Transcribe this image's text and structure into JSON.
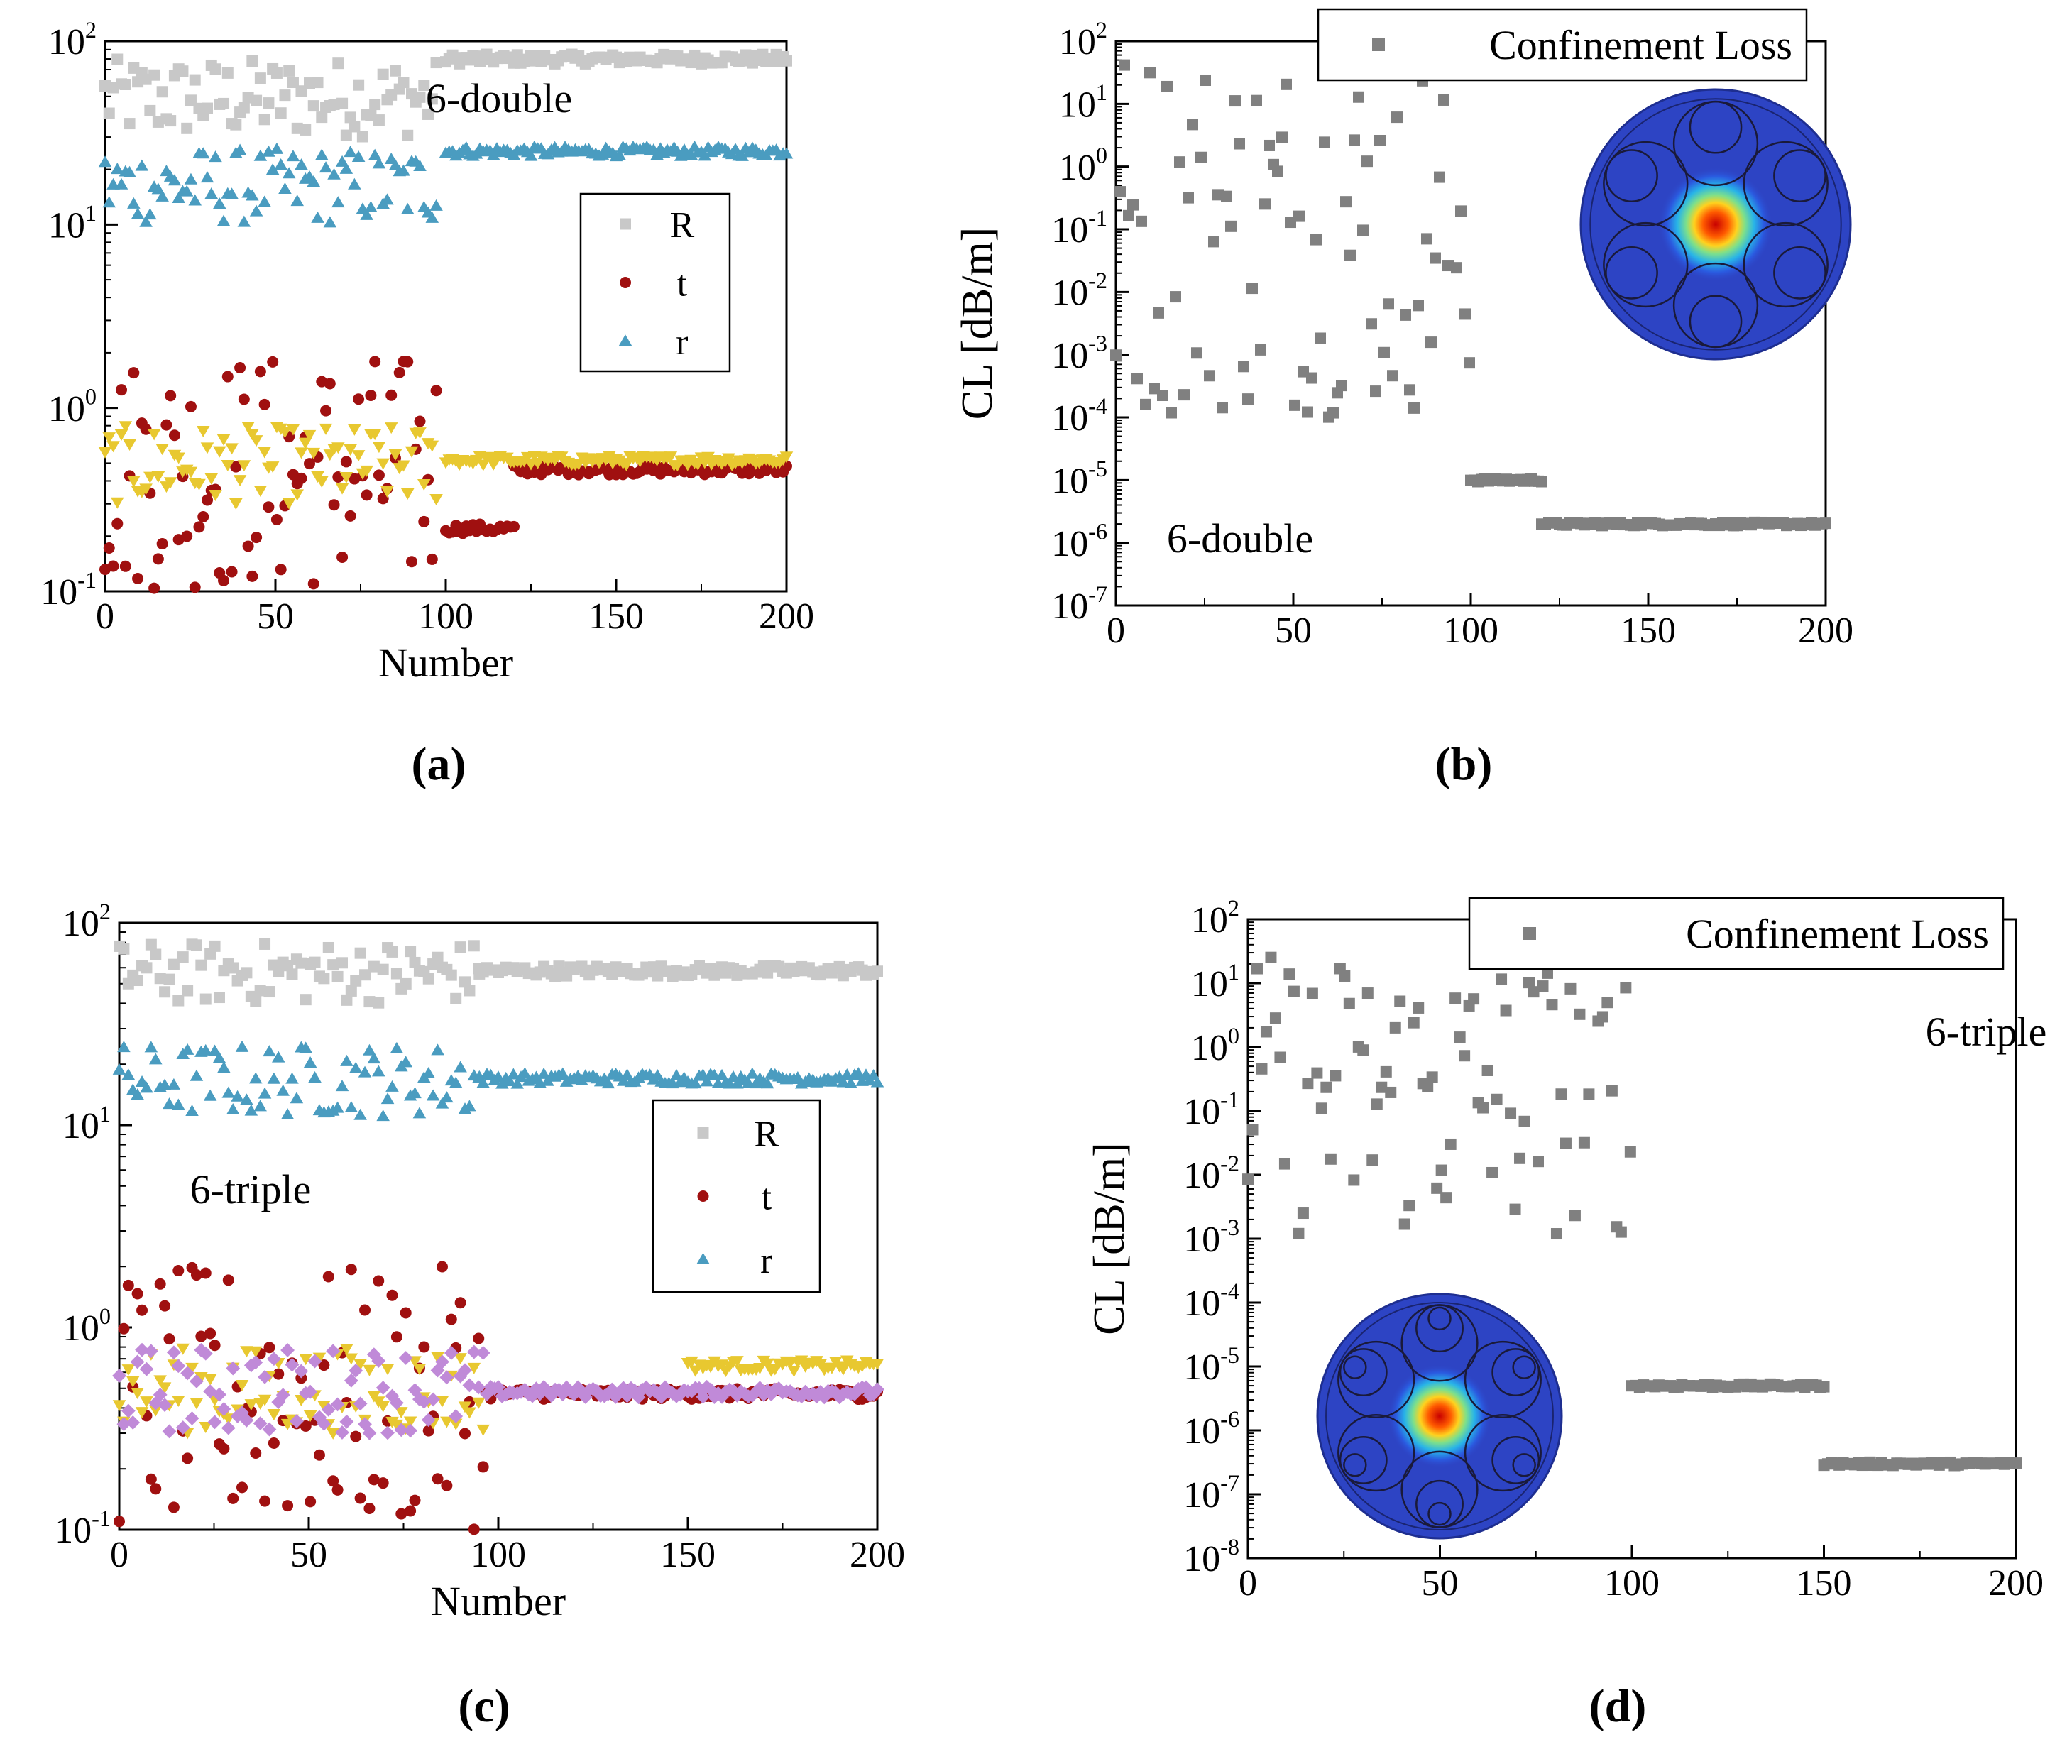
{
  "chart_data": [
    {
      "id": "a",
      "type": "scatter",
      "caption": "(a)",
      "annotation": "6-double",
      "xlabel": "Number",
      "ylabel": "",
      "xlim": [
        0,
        200
      ],
      "ylim_exp": [
        -1,
        2
      ],
      "xticks": [
        "0",
        "50",
        "100",
        "150",
        "200"
      ],
      "ytick_exps": [
        "2",
        "1",
        "0",
        "-1"
      ],
      "legend": [
        {
          "name": "R",
          "marker": "square",
          "color": "#c8c8c8"
        },
        {
          "name": "t",
          "marker": "circle",
          "color": "#a01010"
        },
        {
          "name": "r",
          "marker": "triangle",
          "color": "#4a9cc0"
        }
      ],
      "series": [
        {
          "name": "R",
          "marker": "square",
          "color": "#c8c8c8",
          "pattern": {
            "pre": {
              "x": [
                0,
                98
              ],
              "range": [
                30,
                80
              ]
            },
            "post": {
              "x": [
                100,
                200
              ],
              "value": 80
            }
          }
        },
        {
          "name": "r",
          "marker": "triangle",
          "color": "#4a9cc0",
          "pattern": {
            "pre": {
              "x": [
                0,
                98
              ],
              "range": [
                10,
                26
              ]
            },
            "post": {
              "x": [
                100,
                200
              ],
              "value": 25
            }
          }
        },
        {
          "name": "t",
          "marker": "circle",
          "color": "#a01010",
          "pattern": {
            "pre": {
              "x": [
                0,
                98
              ],
              "range": [
                0.1,
                2.0
              ]
            },
            "mid": {
              "x": [
                100,
                120
              ],
              "value": 0.22
            },
            "post": {
              "x": [
                120,
                200
              ],
              "value": 0.46
            }
          }
        },
        {
          "name": "unlabeled-yellow",
          "marker": "triangle-down",
          "color": "#e8c830",
          "pattern": {
            "pre": {
              "x": [
                0,
                98
              ],
              "range": [
                0.3,
                0.8
              ]
            },
            "post": {
              "x": [
                100,
                200
              ],
              "value": 0.52
            }
          }
        }
      ]
    },
    {
      "id": "b",
      "type": "scatter",
      "caption": "(b)",
      "annotation": "6-double",
      "xlabel": "",
      "ylabel": "CL [dB/m]",
      "xlim": [
        0,
        200
      ],
      "ylim_exp": [
        -7,
        2
      ],
      "xticks": [
        "0",
        "50",
        "100",
        "150",
        "200"
      ],
      "ytick_exps": [
        "2",
        "1",
        "0",
        "-1",
        "-2",
        "-3",
        "-4",
        "-5",
        "-6",
        "-7"
      ],
      "legend": [
        {
          "name": "Confinement Loss",
          "marker": "square",
          "color": "#808080"
        }
      ],
      "series": [
        {
          "name": "Confinement Loss",
          "marker": "square",
          "color": "#808080",
          "pattern": {
            "pre": {
              "x": [
                0,
                100
              ],
              "range_exp": [
                -4,
                2
              ]
            },
            "mid": {
              "x": [
                100,
                120
              ],
              "value": 1e-05
            },
            "post": {
              "x": [
                120,
                200
              ],
              "value": 2e-06
            }
          }
        }
      ],
      "inset": "fiber-mode-6-double"
    },
    {
      "id": "c",
      "type": "scatter",
      "caption": "(c)",
      "annotation": "6-triple",
      "xlabel": "Number",
      "ylabel": "",
      "xlim": [
        0,
        200
      ],
      "ylim_exp": [
        -1,
        2
      ],
      "xticks": [
        "0",
        "50",
        "100",
        "150",
        "200"
      ],
      "ytick_exps": [
        "2",
        "1",
        "0",
        "-1"
      ],
      "legend": [
        {
          "name": "R",
          "marker": "square",
          "color": "#c8c8c8"
        },
        {
          "name": "t",
          "marker": "circle",
          "color": "#a01010"
        },
        {
          "name": "r",
          "marker": "triangle",
          "color": "#4a9cc0"
        }
      ],
      "series": [
        {
          "name": "R",
          "marker": "square",
          "color": "#c8c8c8",
          "pattern": {
            "pre": {
              "x": [
                0,
                95
              ],
              "range": [
                40,
                80
              ]
            },
            "post": {
              "x": [
                95,
                200
              ],
              "value": 58
            }
          }
        },
        {
          "name": "r",
          "marker": "triangle",
          "color": "#4a9cc0",
          "pattern": {
            "pre": {
              "x": [
                0,
                95
              ],
              "range": [
                11,
                25
              ]
            },
            "post": {
              "x": [
                95,
                200
              ],
              "value": 17
            }
          }
        },
        {
          "name": "t",
          "marker": "circle",
          "color": "#a01010",
          "pattern": {
            "pre": {
              "x": [
                0,
                97
              ],
              "range": [
                0.1,
                2.0
              ]
            },
            "post": {
              "x": [
                97,
                200
              ],
              "value": 0.47
            }
          }
        },
        {
          "name": "unlabeled-yellow",
          "marker": "triangle-down",
          "color": "#e8c830",
          "pattern": {
            "pre": {
              "x": [
                0,
                97
              ],
              "range": [
                0.3,
                0.8
              ]
            },
            "post": {
              "x": [
                150,
                200
              ],
              "value": 0.65
            }
          }
        },
        {
          "name": "unlabeled-purple",
          "marker": "diamond",
          "color": "#c08ad8",
          "pattern": {
            "pre": {
              "x": [
                0,
                97
              ],
              "range": [
                0.3,
                0.8
              ]
            },
            "post": {
              "x": [
                97,
                200
              ],
              "value": 0.48
            }
          }
        }
      ]
    },
    {
      "id": "d",
      "type": "scatter",
      "caption": "(d)",
      "annotation": "6-triple",
      "xlabel": "",
      "ylabel": "CL [dB/m]",
      "xlim": [
        0,
        200
      ],
      "ylim_exp": [
        -8,
        2
      ],
      "xticks": [
        "0",
        "50",
        "100",
        "150",
        "200"
      ],
      "ytick_exps": [
        "2",
        "1",
        "0",
        "-1",
        "-2",
        "-3",
        "-4",
        "-5",
        "-6",
        "-7",
        "-8"
      ],
      "legend": [
        {
          "name": "Confinement Loss",
          "marker": "square",
          "color": "#808080"
        }
      ],
      "series": [
        {
          "name": "Confinement Loss",
          "marker": "square",
          "color": "#808080",
          "pattern": {
            "pre": {
              "x": [
                0,
                100
              ],
              "range_exp": [
                -3,
                1.5
              ]
            },
            "mid": {
              "x": [
                100,
                150
              ],
              "value": 5e-06
            },
            "post": {
              "x": [
                150,
                200
              ],
              "value": 3e-07
            }
          }
        }
      ],
      "inset": "fiber-mode-6-triple"
    }
  ]
}
